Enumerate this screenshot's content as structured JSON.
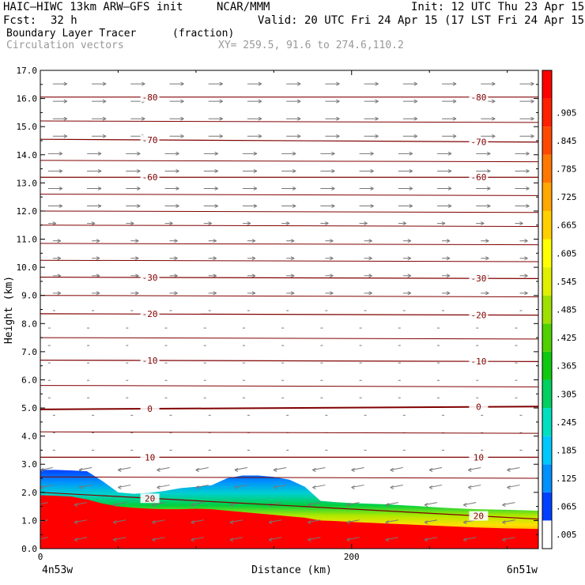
{
  "header": {
    "model": "HAIC—HIWC 13km ARW—GFS init",
    "org": "NCAR/MMM",
    "init": "Init: 12 UTC Thu 23 Apr 15",
    "fcst_label": "Fcst:",
    "fcst_value": "32 h",
    "valid": "Valid: 20 UTC Fri 24 Apr 15 (17 LST Fri 24 Apr 15)",
    "field": "Boundary Layer Tracer",
    "field_units": "(fraction)",
    "vectors": "Circulation vectors",
    "xy": "XY= 259.5, 91.6 to 274.6,110.2"
  },
  "chart_data": {
    "type": "heatmap",
    "xlabel": "Distance (km)",
    "ylabel": "Height (km)",
    "xlim": [
      0,
      320
    ],
    "ylim": [
      0,
      17
    ],
    "xticks": [
      "0",
      "200"
    ],
    "yticks": [
      "0.0",
      "1.0",
      "2.0",
      "3.0",
      "4.0",
      "5.0",
      "6.0",
      "7.0",
      "8.0",
      "9.0",
      "10.0",
      "11.0",
      "12.0",
      "13.0",
      "14.0",
      "15.0",
      "16.0",
      "17.0"
    ],
    "x_endpoints": {
      "left": "4n53w",
      "right": "6n51w"
    },
    "colorbar": {
      "labels": [
        ".005",
        ".065",
        ".125",
        ".185",
        ".245",
        ".305",
        ".365",
        ".425",
        ".485",
        ".545",
        ".605",
        ".665",
        ".725",
        ".785",
        ".845",
        ".905"
      ],
      "colors": [
        "#ffffff",
        "#0040ff",
        "#0090ff",
        "#00c8ff",
        "#00e0c0",
        "#00d060",
        "#10c810",
        "#50d000",
        "#a0e000",
        "#e0f000",
        "#ffff00",
        "#ffd000",
        "#ffa800",
        "#ff7800",
        "#ff4800",
        "#ff2000",
        "#ff0000"
      ]
    },
    "temperature_contours": [
      {
        "label": "-80",
        "y": [
          16.05,
          16.05
        ]
      },
      {
        "label": "-70",
        "y": [
          14.55,
          14.45
        ]
      },
      {
        "label": "-60",
        "y": [
          13.2,
          13.2
        ]
      },
      {
        "label": "-30",
        "y": [
          9.65,
          9.6
        ]
      },
      {
        "label": "-20",
        "y": [
          8.35,
          8.3
        ]
      },
      {
        "label": "-10",
        "y": [
          6.7,
          6.65
        ]
      },
      {
        "label": "0",
        "y": [
          4.95,
          5.05
        ]
      },
      {
        "label": "10",
        "y": [
          3.25,
          3.25
        ]
      },
      {
        "label": "20",
        "y": [
          2.0,
          1.05
        ]
      }
    ],
    "tracer_top_km": {
      "x": [
        0,
        10,
        20,
        30,
        40,
        50,
        60,
        70,
        80,
        90,
        100,
        110,
        120,
        130,
        140,
        150,
        160,
        170,
        180,
        190,
        200,
        220,
        240,
        260,
        280,
        300,
        320
      ],
      "top": [
        2.8,
        2.8,
        2.78,
        2.75,
        2.4,
        2.0,
        1.95,
        1.98,
        2.05,
        2.15,
        2.2,
        2.25,
        2.5,
        2.6,
        2.6,
        2.55,
        2.45,
        2.2,
        1.7,
        1.65,
        1.62,
        1.58,
        1.52,
        1.45,
        1.4,
        1.38,
        1.35
      ],
      "red_top": [
        1.9,
        1.88,
        1.85,
        1.75,
        1.6,
        1.5,
        1.45,
        1.42,
        1.4,
        1.4,
        1.42,
        1.4,
        1.35,
        1.3,
        1.25,
        1.2,
        1.15,
        1.1,
        1.0,
        0.98,
        0.95,
        0.9,
        0.85,
        0.8,
        0.75,
        0.72,
        0.7
      ]
    },
    "grid": false,
    "legend": "right"
  }
}
